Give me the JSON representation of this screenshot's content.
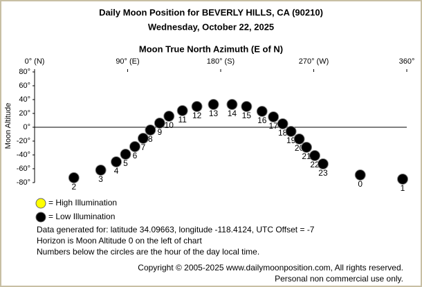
{
  "chart_data": {
    "type": "scatter",
    "title": "Daily Moon Position for BEVERLY HILLS, CA (90210)",
    "subtitle": "Wednesday, October 22, 2025",
    "x_label": "Moon True North Azimuth (E of N)",
    "y_label": "Moon Altitude",
    "xlim": [
      0,
      360
    ],
    "xticks": [
      {
        "value": 0,
        "label": "0° (N)"
      },
      {
        "value": 90,
        "label": "90° (E)"
      },
      {
        "value": 180,
        "label": "180° (S)"
      },
      {
        "value": 270,
        "label": "270° (W)"
      },
      {
        "value": 360,
        "label": "360°"
      }
    ],
    "ylim": [
      -80,
      80
    ],
    "yticks": [
      {
        "value": 80,
        "label": "80°"
      },
      {
        "value": 60,
        "label": "60°"
      },
      {
        "value": 40,
        "label": "40°"
      },
      {
        "value": 20,
        "label": "20°"
      },
      {
        "value": 0,
        "label": "0°"
      },
      {
        "value": -20,
        "label": "-20°"
      },
      {
        "value": -40,
        "label": "-40°"
      },
      {
        "value": -60,
        "label": "-60°"
      },
      {
        "value": -80,
        "label": "-80°"
      }
    ],
    "series": [
      {
        "name": "= High Illumination",
        "color": "#ffff00",
        "x": [],
        "y": [],
        "labels": []
      },
      {
        "name": "= Low Illumination",
        "color": "#000000",
        "x": [
          38,
          64,
          79,
          88,
          97,
          105,
          112,
          121,
          130,
          143,
          157,
          173,
          191,
          205,
          220,
          231,
          240,
          248,
          256,
          263,
          271,
          279,
          315,
          356
        ],
        "y": [
          -73,
          -62,
          -50,
          -39,
          -28,
          -16,
          -4,
          6,
          16,
          24,
          30,
          33,
          33,
          30,
          23,
          15,
          5,
          -6,
          -17,
          -29,
          -41,
          -53,
          -69,
          -75
        ],
        "labels": [
          "2",
          "3",
          "4",
          "5",
          "6",
          "7",
          "8",
          "9",
          "10",
          "11",
          "12",
          "13",
          "14",
          "15",
          "16",
          "17",
          "18",
          "19",
          "20",
          "21",
          "22",
          "23",
          "0",
          "1"
        ]
      }
    ],
    "notes": [
      "Data generated for: latitude 34.09663, longitude -118.4124, UTC Offset = -7",
      "Horizon is Moon Altitude 0 on the left of chart",
      "Numbers below the circles are the hour of the day local time."
    ],
    "copyright": [
      "Copyright © 2005-2025 www.dailymoonposition.com, All rights reserved.",
      "Personal non commercial use only."
    ]
  }
}
